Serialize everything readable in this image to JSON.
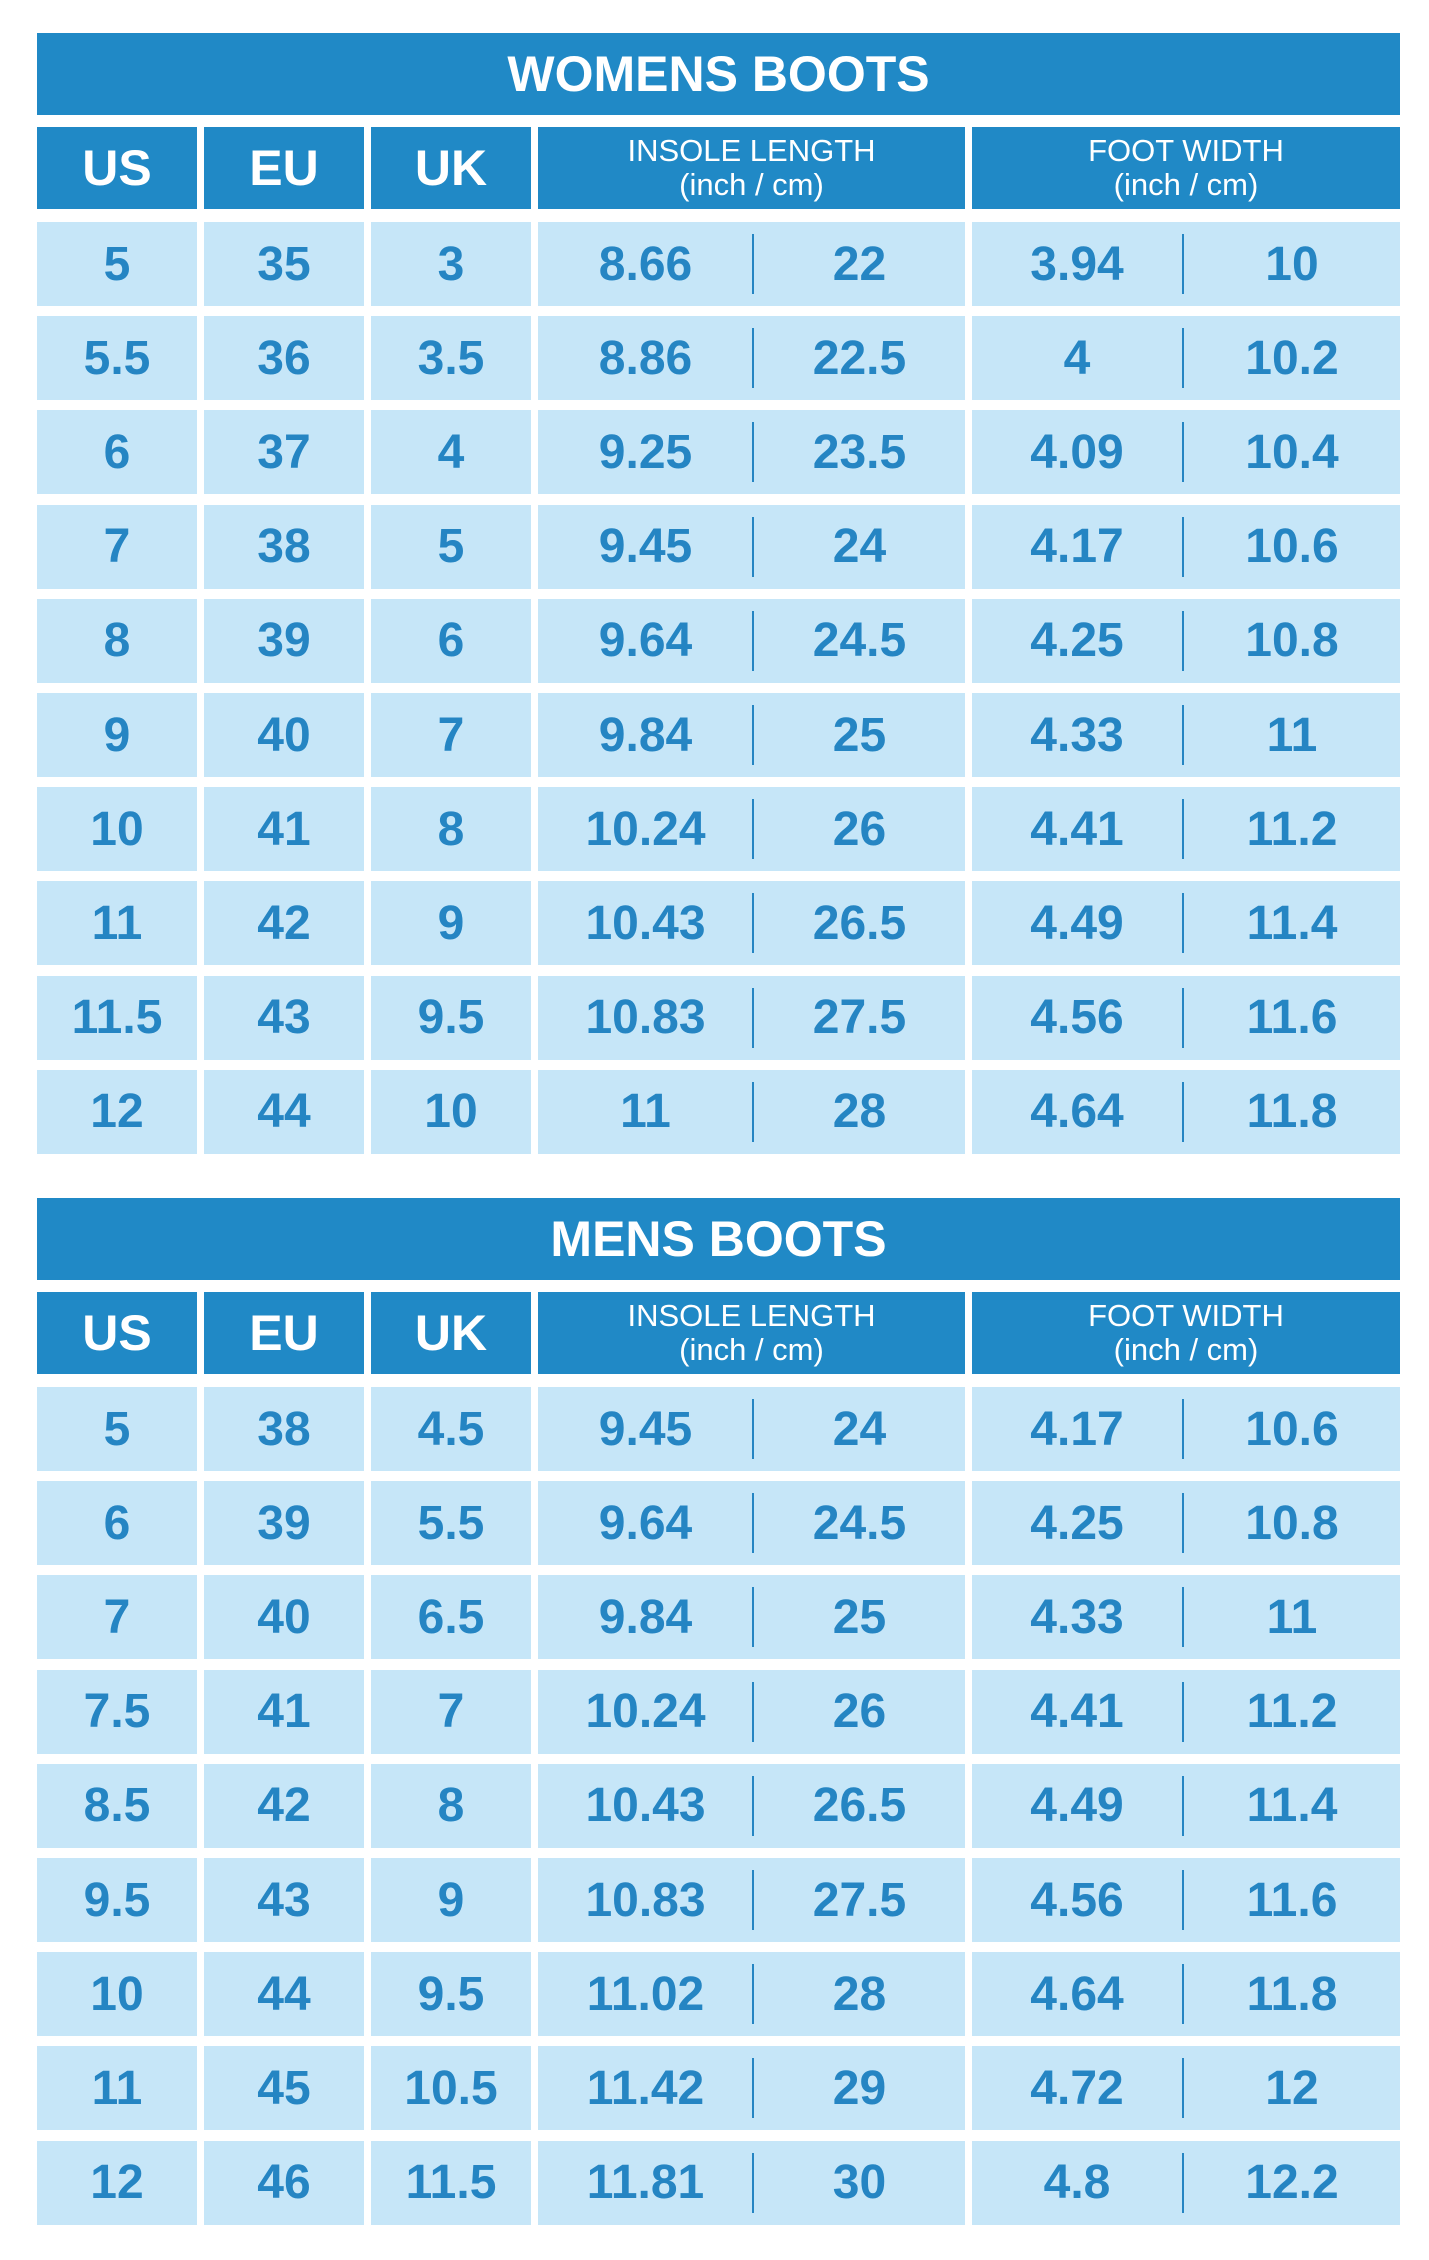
{
  "colors": {
    "header_bg": "#2089c6",
    "cell_bg": "#c6e6f8",
    "cell_text": "#2585c3",
    "header_text": "#ffffff"
  },
  "tables": [
    {
      "title": "WOMENS BOOTS",
      "headers": {
        "us": "US",
        "eu": "EU",
        "uk": "UK",
        "insole": "INSOLE LENGTH",
        "insole_unit": "(inch / cm)",
        "width": "FOOT WIDTH",
        "width_unit": "(inch / cm)"
      },
      "rows": [
        [
          "5",
          "35",
          "3",
          "8.66",
          "22",
          "3.94",
          "10"
        ],
        [
          "5.5",
          "36",
          "3.5",
          "8.86",
          "22.5",
          "4",
          "10.2"
        ],
        [
          "6",
          "37",
          "4",
          "9.25",
          "23.5",
          "4.09",
          "10.4"
        ],
        [
          "7",
          "38",
          "5",
          "9.45",
          "24",
          "4.17",
          "10.6"
        ],
        [
          "8",
          "39",
          "6",
          "9.64",
          "24.5",
          "4.25",
          "10.8"
        ],
        [
          "9",
          "40",
          "7",
          "9.84",
          "25",
          "4.33",
          "11"
        ],
        [
          "10",
          "41",
          "8",
          "10.24",
          "26",
          "4.41",
          "11.2"
        ],
        [
          "11",
          "42",
          "9",
          "10.43",
          "26.5",
          "4.49",
          "11.4"
        ],
        [
          "11.5",
          "43",
          "9.5",
          "10.83",
          "27.5",
          "4.56",
          "11.6"
        ],
        [
          "12",
          "44",
          "10",
          "11",
          "28",
          "4.64",
          "11.8"
        ]
      ]
    },
    {
      "title": "MENS BOOTS",
      "headers": {
        "us": "US",
        "eu": "EU",
        "uk": "UK",
        "insole": "INSOLE LENGTH",
        "insole_unit": "(inch / cm)",
        "width": "FOOT WIDTH",
        "width_unit": "(inch / cm)"
      },
      "rows": [
        [
          "5",
          "38",
          "4.5",
          "9.45",
          "24",
          "4.17",
          "10.6"
        ],
        [
          "6",
          "39",
          "5.5",
          "9.64",
          "24.5",
          "4.25",
          "10.8"
        ],
        [
          "7",
          "40",
          "6.5",
          "9.84",
          "25",
          "4.33",
          "11"
        ],
        [
          "7.5",
          "41",
          "7",
          "10.24",
          "26",
          "4.41",
          "11.2"
        ],
        [
          "8.5",
          "42",
          "8",
          "10.43",
          "26.5",
          "4.49",
          "11.4"
        ],
        [
          "9.5",
          "43",
          "9",
          "10.83",
          "27.5",
          "4.56",
          "11.6"
        ],
        [
          "10",
          "44",
          "9.5",
          "11.02",
          "28",
          "4.64",
          "11.8"
        ],
        [
          "11",
          "45",
          "10.5",
          "11.42",
          "29",
          "4.72",
          "12"
        ],
        [
          "12",
          "46",
          "11.5",
          "11.81",
          "30",
          "4.8",
          "12.2"
        ]
      ]
    }
  ]
}
